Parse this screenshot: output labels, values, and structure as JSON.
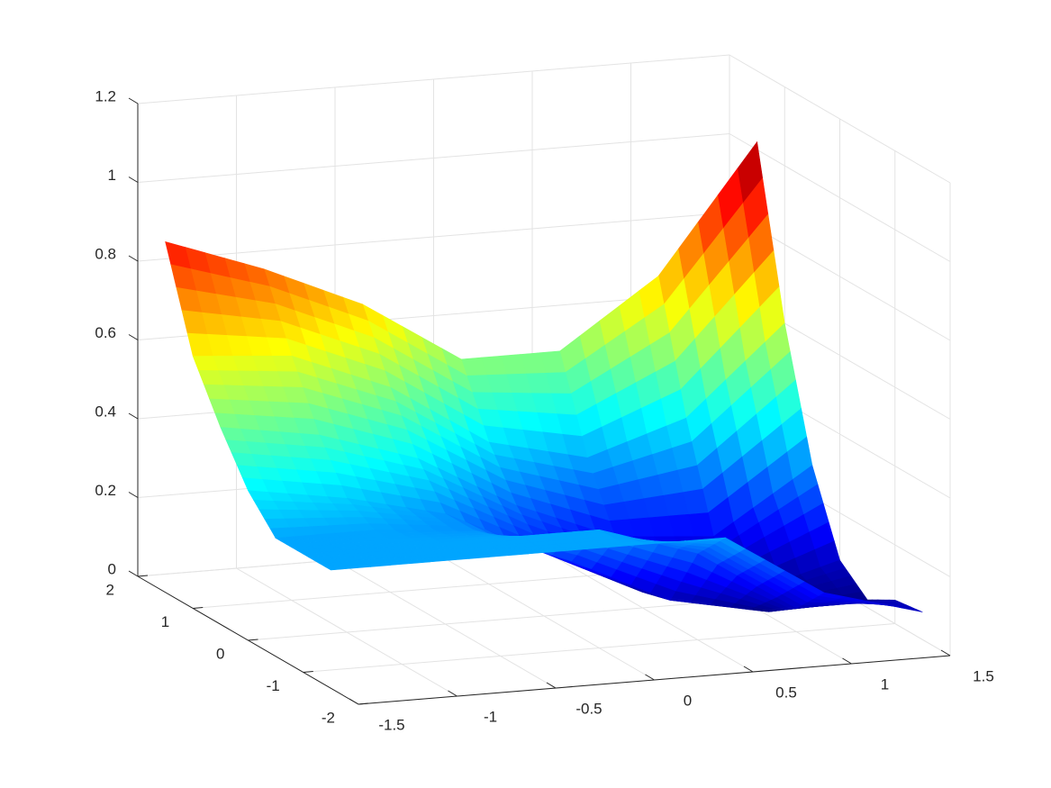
{
  "chart_data": {
    "type": "surface",
    "colormap": "jet",
    "x": [
      -1.5,
      -1,
      -0.5,
      0,
      0.5,
      1,
      1.5
    ],
    "y": [
      -1.5,
      -1,
      -0.5,
      0,
      0.5,
      1,
      1.5
    ],
    "z": [
      [
        0.3,
        0.3,
        0.3,
        0.3,
        0.3,
        0.14,
        0.07
      ],
      [
        0.3,
        0.3,
        0.3,
        0.3,
        0.22,
        0.06,
        0.06
      ],
      [
        0.3,
        0.3,
        0.28,
        0.18,
        0.06,
        0.01,
        0.02
      ],
      [
        0.38,
        0.34,
        0.28,
        0.16,
        0.04,
        0.01,
        0.08
      ],
      [
        0.5,
        0.46,
        0.38,
        0.24,
        0.14,
        0.12,
        0.28
      ],
      [
        0.64,
        0.62,
        0.52,
        0.36,
        0.3,
        0.38,
        0.6
      ],
      [
        0.89,
        0.8,
        0.69,
        0.53,
        0.53,
        0.7,
        1.02
      ]
    ],
    "xlim": [
      -1.5,
      1.5
    ],
    "xticks": [
      -1.5,
      -1,
      -0.5,
      0,
      0.5,
      1,
      1.5
    ],
    "ylim": [
      -2,
      2
    ],
    "yticks": [
      -2,
      -1,
      0,
      1,
      2
    ],
    "zlim": [
      0,
      1.2
    ],
    "zticks": [
      0,
      0.2,
      0.4,
      0.6,
      0.8,
      1,
      1.2
    ],
    "grid": true
  }
}
